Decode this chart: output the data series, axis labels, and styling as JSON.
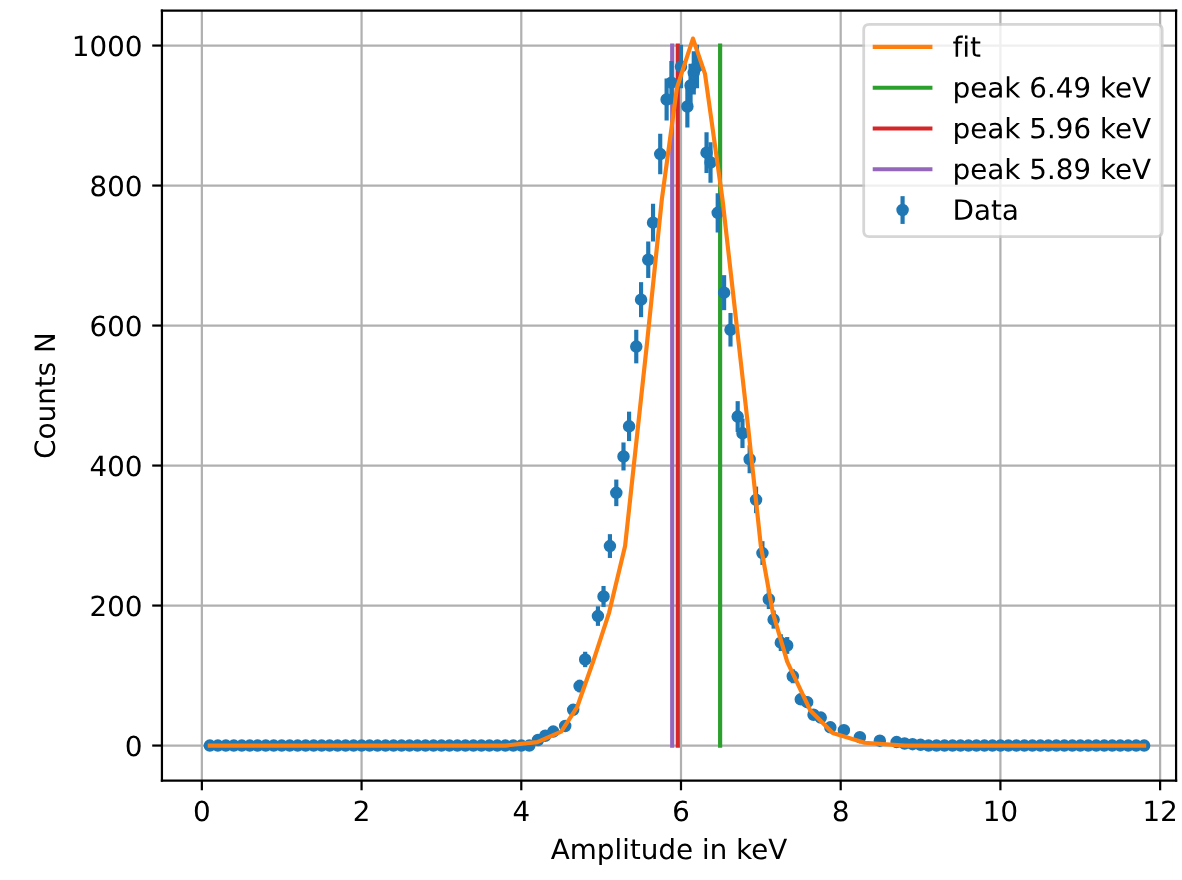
{
  "chart_data": {
    "type": "line",
    "xlabel": "Amplitude in keV",
    "ylabel": "Counts N",
    "xlim": [
      -0.5,
      12.2
    ],
    "ylim": [
      -50,
      1050
    ],
    "xticks": [
      0,
      2,
      4,
      6,
      8,
      10,
      12
    ],
    "yticks": [
      0,
      200,
      400,
      600,
      800,
      1000
    ],
    "grid": true,
    "legend": "top right",
    "series": [
      {
        "name": "fit",
        "color": "#ff7f0e",
        "marker": "none",
        "x": [
          0.1,
          3.8,
          4.2,
          4.5,
          4.7,
          4.9,
          5.1,
          5.3,
          5.57,
          5.76,
          5.95,
          6.15,
          6.3,
          6.52,
          6.84,
          7.0,
          7.15,
          7.33,
          7.62,
          7.9,
          8.3,
          8.8,
          11.8
        ],
        "values": [
          0,
          0,
          5,
          20,
          55,
          120,
          190,
          285,
          570,
          780,
          940,
          1010,
          960,
          780,
          456,
          285,
          190,
          120,
          50,
          18,
          4,
          0,
          0
        ]
      },
      {
        "name": "peak 6.49 keV",
        "type": "line",
        "color": "#2ca02c",
        "marker": "none",
        "x": [
          6.49,
          6.49
        ],
        "values": [
          0,
          1000
        ]
      },
      {
        "name": "peak 5.96 keV",
        "type": "line",
        "color": "#d62728",
        "marker": "none",
        "x": [
          5.96,
          5.96
        ],
        "values": [
          0,
          1000
        ]
      },
      {
        "name": "peak 5.89 keV",
        "type": "line",
        "color": "#9467bd",
        "marker": "none",
        "x": [
          5.89,
          5.89
        ],
        "values": [
          0,
          1000
        ]
      },
      {
        "name": "Data",
        "type": "scatter",
        "color": "#1f77b4",
        "marker": "circle",
        "x": [
          0.1,
          0.2,
          0.3,
          0.4,
          0.5,
          0.6,
          0.7,
          0.8,
          0.9,
          1.0,
          1.1,
          1.2,
          1.3,
          1.4,
          1.5,
          1.6,
          1.7,
          1.8,
          1.9,
          2.0,
          2.1,
          2.2,
          2.3,
          2.4,
          2.5,
          2.6,
          2.7,
          2.8,
          2.9,
          3.0,
          3.1,
          3.2,
          3.3,
          3.4,
          3.5,
          3.6,
          3.7,
          3.8,
          3.9,
          4.0,
          4.1,
          4.21,
          4.3,
          4.4,
          4.55,
          4.65,
          4.73,
          4.8,
          4.96,
          5.03,
          5.11,
          5.19,
          5.28,
          5.35,
          5.44,
          5.5,
          5.59,
          5.65,
          5.74,
          5.82,
          5.88,
          6.0,
          6.08,
          6.12,
          6.16,
          6.2,
          6.32,
          6.37,
          6.46,
          6.54,
          6.62,
          6.71,
          6.77,
          6.86,
          6.94,
          7.02,
          7.1,
          7.16,
          7.25,
          7.33,
          7.4,
          7.5,
          7.58,
          7.66,
          7.75,
          7.87,
          8.04,
          8.24,
          8.49,
          8.7,
          8.8,
          8.9,
          9.0,
          9.1,
          9.2,
          9.3,
          9.4,
          9.5,
          9.6,
          9.7,
          9.8,
          9.9,
          10.0,
          10.1,
          10.2,
          10.3,
          10.4,
          10.5,
          10.6,
          10.7,
          10.8,
          10.9,
          11.0,
          11.1,
          11.2,
          11.3,
          11.4,
          11.5,
          11.6,
          11.7,
          11.8
        ],
        "values": [
          0,
          0,
          0,
          0,
          0,
          0,
          0,
          0,
          0,
          0,
          0,
          0,
          0,
          0,
          0,
          0,
          0,
          0,
          0,
          0,
          0,
          0,
          0,
          0,
          0,
          0,
          0,
          0,
          0,
          0,
          0,
          0,
          0,
          0,
          0,
          0,
          0,
          0,
          0,
          0,
          0,
          8,
          14,
          20,
          28,
          51,
          85,
          123,
          185,
          213,
          285,
          361,
          413,
          456,
          570,
          637,
          694,
          747,
          845,
          923,
          947,
          970,
          913,
          943,
          961,
          970,
          847,
          833,
          761,
          647,
          594,
          470,
          446,
          409,
          351,
          275,
          209,
          180,
          147,
          143,
          99,
          66,
          62,
          44,
          40,
          26,
          22,
          12,
          7,
          5,
          3,
          2,
          1,
          0,
          0,
          0,
          0,
          0,
          0,
          0,
          0,
          0,
          0,
          0,
          0,
          0,
          0,
          0,
          0,
          0,
          0,
          0,
          0,
          0,
          0,
          0,
          0,
          0,
          0,
          0,
          0
        ],
        "errors": [
          null,
          null,
          null,
          null,
          null,
          null,
          null,
          null,
          null,
          null,
          null,
          null,
          null,
          null,
          null,
          null,
          null,
          null,
          null,
          null,
          null,
          null,
          null,
          null,
          null,
          null,
          null,
          null,
          null,
          null,
          null,
          null,
          null,
          null,
          null,
          null,
          null,
          null,
          null,
          null,
          null,
          3,
          4,
          4,
          5,
          7,
          9,
          11,
          14,
          15,
          17,
          19,
          20,
          21,
          24,
          25,
          26,
          27,
          29,
          30,
          31,
          31,
          30,
          31,
          31,
          31,
          29,
          29,
          28,
          25,
          24,
          22,
          21,
          20,
          19,
          17,
          14,
          13,
          12,
          12,
          10,
          8,
          8,
          7,
          6,
          5,
          5,
          3,
          3,
          2,
          null,
          null,
          null,
          null,
          null,
          null,
          null,
          null,
          null,
          null,
          null,
          null,
          null,
          null,
          null,
          null,
          null,
          null,
          null,
          null,
          null,
          null,
          null,
          null,
          null,
          null,
          null,
          null,
          null,
          null,
          null
        ]
      }
    ]
  }
}
